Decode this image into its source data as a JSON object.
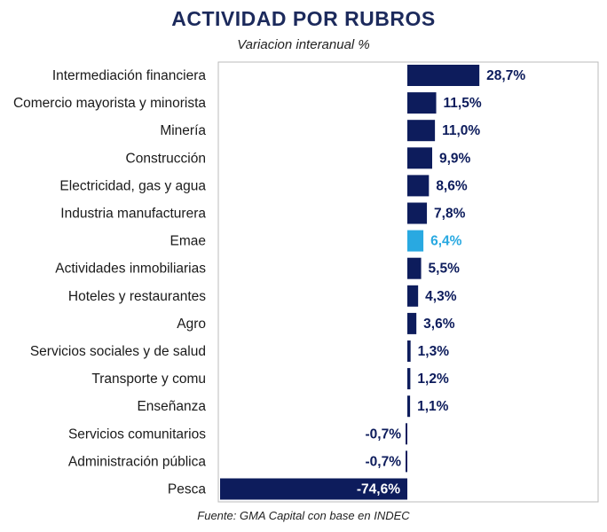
{
  "chart_data": {
    "type": "bar",
    "orientation": "horizontal",
    "title": "ACTIVIDAD POR RUBROS",
    "subtitle": "Variacion interanual %",
    "source": "Fuente: GMA Capital con base en INDEC",
    "categories": [
      "Intermediación financiera",
      "Comercio mayorista y minorista",
      "Minería",
      "Construcción",
      "Electricidad, gas y agua",
      "Industria manufacturera",
      "Emae",
      "Actividades inmobiliarias",
      "Hoteles y restaurantes",
      "Agro",
      "Servicios sociales y de salud",
      "Transporte y comu",
      "Enseñanza",
      "Servicios comunitarios",
      "Administración pública",
      "Pesca"
    ],
    "values": [
      28.7,
      11.5,
      11.0,
      9.9,
      8.6,
      7.8,
      6.4,
      5.5,
      4.3,
      3.6,
      1.3,
      1.2,
      1.1,
      -0.7,
      -0.7,
      -74.6
    ],
    "value_labels": [
      "28,7%",
      "11,5%",
      "11,0%",
      "9,9%",
      "8,6%",
      "7,8%",
      "6,4%",
      "5,5%",
      "4,3%",
      "3,6%",
      "1,3%",
      "1,2%",
      "1,1%",
      "-0,7%",
      "-0,7%",
      "-74,6%"
    ],
    "highlight": "Emae",
    "colors": {
      "bar": "#0d1c5c",
      "highlight": "#29a9e1",
      "title": "#1c2a5c",
      "frame": "#bbbbbb"
    },
    "grid": false,
    "legend": "none"
  }
}
